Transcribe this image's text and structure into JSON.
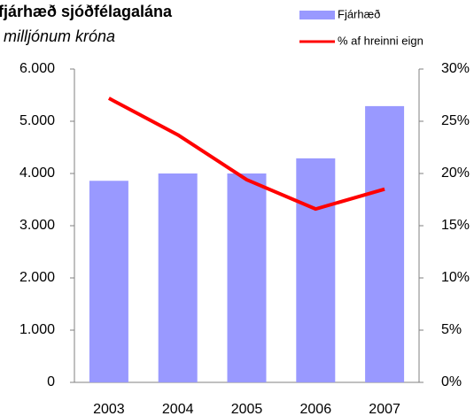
{
  "chart_data": {
    "type": "bar_line",
    "title": "fjárhæð sjóðfélagalána",
    "subtitle": "milljónum króna",
    "categories": [
      "2003",
      "2004",
      "2005",
      "2006",
      "2007"
    ],
    "series": [
      {
        "name": "Fjárhæð",
        "color": "#9999ff",
        "type": "bar",
        "values": [
          3860,
          4000,
          4000,
          4290,
          5290
        ]
      },
      {
        "name": "% af hreinni eign",
        "color": "#ff0000",
        "type": "line",
        "axis": "y2",
        "values": [
          27.2,
          23.7,
          19.4,
          16.6,
          18.5
        ]
      }
    ],
    "ylim": [
      0,
      6000
    ],
    "yticks": [
      0,
      {
        "value": 1000,
        "label": "1.000"
      },
      {
        "value": 2000,
        "label": "2.000"
      },
      {
        "value": 3000,
        "label": "3.000"
      },
      {
        "value": 4000,
        "label": "4.000"
      },
      {
        "value": 5000,
        "label": "5.000"
      },
      {
        "value": 6000,
        "label": "6.000"
      }
    ],
    "y2lim": [
      0,
      30
    ],
    "y2ticks": [
      {
        "value": 0,
        "label": "0%"
      },
      {
        "value": 5,
        "label": "5%"
      },
      {
        "value": 10,
        "label": "10%"
      },
      {
        "value": 15,
        "label": "15%"
      },
      {
        "value": 20,
        "label": "20%"
      },
      {
        "value": 25,
        "label": "25%"
      },
      {
        "value": 30,
        "label": "30%"
      }
    ],
    "grid": false,
    "legend": "top-right"
  }
}
